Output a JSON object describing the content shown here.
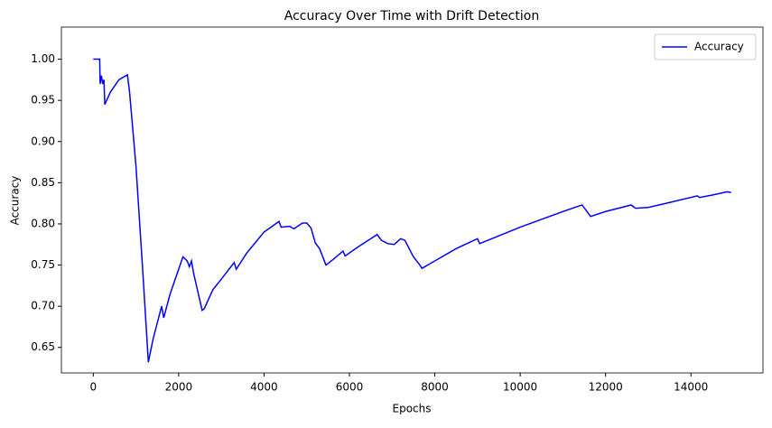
{
  "chart_data": {
    "type": "line",
    "title": "Accuracy Over Time with Drift Detection",
    "xlabel": "Epochs",
    "ylabel": "Accuracy",
    "legend": "upper right",
    "xlim": [
      -747,
      15687
    ],
    "ylim": [
      0.619,
      1.039
    ],
    "xticks": [
      0,
      2000,
      4000,
      6000,
      8000,
      10000,
      12000,
      14000
    ],
    "yticks": [
      0.65,
      {
        "value": 0.7,
        "label": "0.70"
      },
      0.75,
      {
        "value": 0.8,
        "label": "0.80"
      },
      0.85,
      {
        "value": 0.9,
        "label": "0.90"
      },
      0.95,
      {
        "value": 1,
        "label": "1.00"
      }
    ],
    "x": [
      0,
      150,
      160,
      190,
      220,
      250,
      270,
      400,
      600,
      800,
      850,
      1000,
      1150,
      1290,
      1400,
      1600,
      1650,
      1800,
      2000,
      2100,
      2200,
      2250,
      2300,
      2350,
      2550,
      2600,
      2800,
      3000,
      3300,
      3350,
      3600,
      4000,
      4350,
      4400,
      4600,
      4700,
      4900,
      5000,
      5100,
      5200,
      5300,
      5450,
      5600,
      5850,
      5900,
      6200,
      6650,
      6750,
      6900,
      7050,
      7200,
      7300,
      7500,
      7650,
      7700,
      8000,
      8500,
      9000,
      9050,
      10000,
      11000,
      11450,
      11650,
      12000,
      12600,
      12700,
      13000,
      13500,
      14150,
      14200,
      14500,
      14850,
      14940
    ],
    "series": [
      {
        "name": "Accuracy",
        "color": "#0000ff",
        "values": [
          1.0,
          1.0,
          0.97,
          0.98,
          0.97,
          0.975,
          0.945,
          0.96,
          0.975,
          0.981,
          0.96,
          0.87,
          0.75,
          0.632,
          0.66,
          0.7,
          0.686,
          0.715,
          0.745,
          0.76,
          0.755,
          0.748,
          0.755,
          0.74,
          0.695,
          0.697,
          0.72,
          0.733,
          0.753,
          0.745,
          0.765,
          0.79,
          0.803,
          0.796,
          0.797,
          0.794,
          0.801,
          0.801,
          0.795,
          0.777,
          0.77,
          0.75,
          0.756,
          0.767,
          0.761,
          0.772,
          0.787,
          0.78,
          0.776,
          0.775,
          0.782,
          0.78,
          0.76,
          0.75,
          0.746,
          0.755,
          0.77,
          0.782,
          0.776,
          0.796,
          0.815,
          0.823,
          0.809,
          0.815,
          0.823,
          0.819,
          0.82,
          0.826,
          0.834,
          0.832,
          0.835,
          0.839,
          0.838
        ]
      }
    ]
  }
}
